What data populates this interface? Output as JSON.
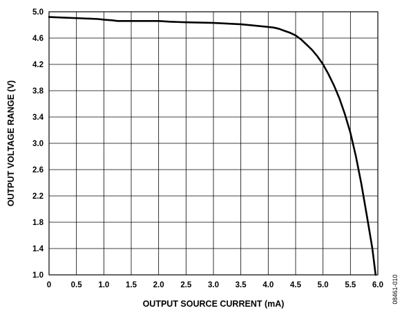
{
  "chart_data": {
    "type": "line",
    "xlabel": "OUTPUT SOURCE CURRENT (mA)",
    "ylabel": "OUTPUT VOLTAGE RANGE (V)",
    "xlim": [
      0,
      6.0
    ],
    "ylim": [
      1.0,
      5.0
    ],
    "x_ticks": [
      "0",
      "0.5",
      "1.0",
      "1.5",
      "2.0",
      "2.5",
      "3.0",
      "3.5",
      "4.0",
      "4.5",
      "5.0",
      "5.5",
      "6.0"
    ],
    "y_ticks": [
      "1.0",
      "1.4",
      "1.8",
      "2.2",
      "2.6",
      "3.0",
      "3.4",
      "3.8",
      "4.2",
      "4.6",
      "5.0"
    ],
    "grid": true,
    "series": [
      {
        "x": [
          0,
          0.3,
          0.6,
          0.9,
          1.0,
          1.15,
          1.25,
          1.5,
          2.0,
          2.2,
          2.5,
          3.0,
          3.5,
          3.75,
          4.0,
          4.1,
          4.2,
          4.3,
          4.4,
          4.5,
          4.6,
          4.7,
          4.8,
          4.9,
          5.0,
          5.1,
          5.2,
          5.3,
          5.4,
          5.5,
          5.6,
          5.7,
          5.8,
          5.9,
          5.96
        ],
        "y": [
          4.92,
          4.91,
          4.9,
          4.89,
          4.88,
          4.87,
          4.86,
          4.86,
          4.86,
          4.85,
          4.84,
          4.83,
          4.81,
          4.79,
          4.77,
          4.76,
          4.74,
          4.71,
          4.68,
          4.64,
          4.58,
          4.5,
          4.42,
          4.32,
          4.2,
          4.05,
          3.88,
          3.68,
          3.44,
          3.16,
          2.8,
          2.38,
          1.9,
          1.4,
          1.0
        ]
      }
    ],
    "color": "#000000"
  },
  "figure_id": "08461-010"
}
